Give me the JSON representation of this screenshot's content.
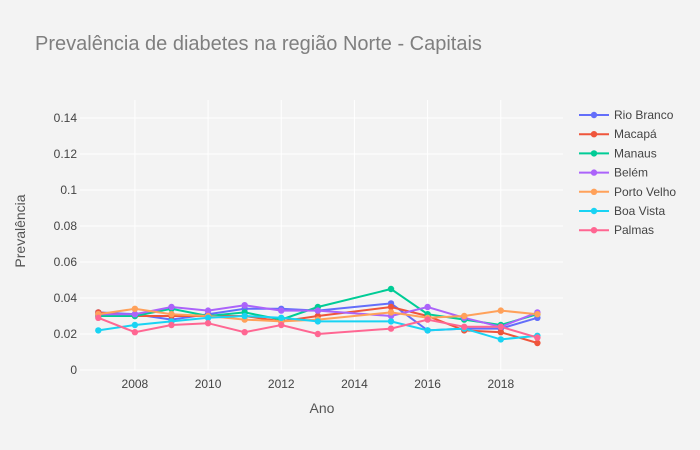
{
  "chart_data": {
    "type": "line",
    "title": "Prevalência de diabetes na região Norte - Capitais",
    "xlabel": "Ano",
    "ylabel": "Prevalência",
    "xlim": [
      2006.5,
      2019.7
    ],
    "ylim": [
      0,
      0.15
    ],
    "x_ticks": [
      2008,
      2010,
      2012,
      2014,
      2016,
      2018
    ],
    "x_tick_labels": [
      "2008",
      "2010",
      "2012",
      "2014",
      "2016",
      "2018"
    ],
    "y_ticks": [
      0,
      0.02,
      0.04,
      0.06,
      0.08,
      0.1,
      0.12,
      0.14
    ],
    "y_tick_labels": [
      "0",
      "0.02",
      "0.04",
      "0.06",
      "0.08",
      "0.1",
      "0.12",
      "0.14"
    ],
    "grid": true,
    "legend_position": "right",
    "x": [
      2007,
      2008,
      2009,
      2010,
      2011,
      2012,
      2013,
      2015,
      2016,
      2017,
      2018,
      2019
    ],
    "series": [
      {
        "name": "Rio Branco",
        "color": "#636efa",
        "values": [
          0.032,
          0.031,
          0.028,
          0.031,
          0.034,
          0.034,
          0.033,
          0.037,
          0.022,
          0.023,
          0.023,
          0.029
        ]
      },
      {
        "name": "Macapá",
        "color": "#ef553b",
        "values": [
          0.032,
          0.03,
          0.03,
          0.03,
          0.03,
          0.027,
          0.03,
          0.035,
          0.03,
          0.022,
          0.021,
          0.015
        ]
      },
      {
        "name": "Manaus",
        "color": "#00cc96",
        "values": [
          0.03,
          0.03,
          0.034,
          0.03,
          0.032,
          0.028,
          0.035,
          0.045,
          0.031,
          0.028,
          0.025,
          0.031
        ]
      },
      {
        "name": "Belém",
        "color": "#ab63fa",
        "values": [
          0.031,
          0.031,
          0.035,
          0.033,
          0.036,
          0.033,
          0.033,
          0.03,
          0.035,
          0.029,
          0.024,
          0.032
        ]
      },
      {
        "name": "Porto Velho",
        "color": "#ffa15a",
        "values": [
          0.031,
          0.034,
          0.031,
          0.03,
          0.028,
          0.027,
          0.028,
          0.032,
          0.029,
          0.03,
          0.033,
          0.031
        ]
      },
      {
        "name": "Boa Vista",
        "color": "#19d3f3",
        "values": [
          0.022,
          0.025,
          0.027,
          0.029,
          0.03,
          0.029,
          0.027,
          0.027,
          0.022,
          0.023,
          0.017,
          0.019
        ]
      },
      {
        "name": "Palmas",
        "color": "#ff6692",
        "values": [
          0.029,
          0.021,
          0.025,
          0.026,
          0.021,
          0.025,
          0.02,
          0.023,
          0.028,
          0.024,
          0.024,
          0.018
        ]
      }
    ]
  }
}
